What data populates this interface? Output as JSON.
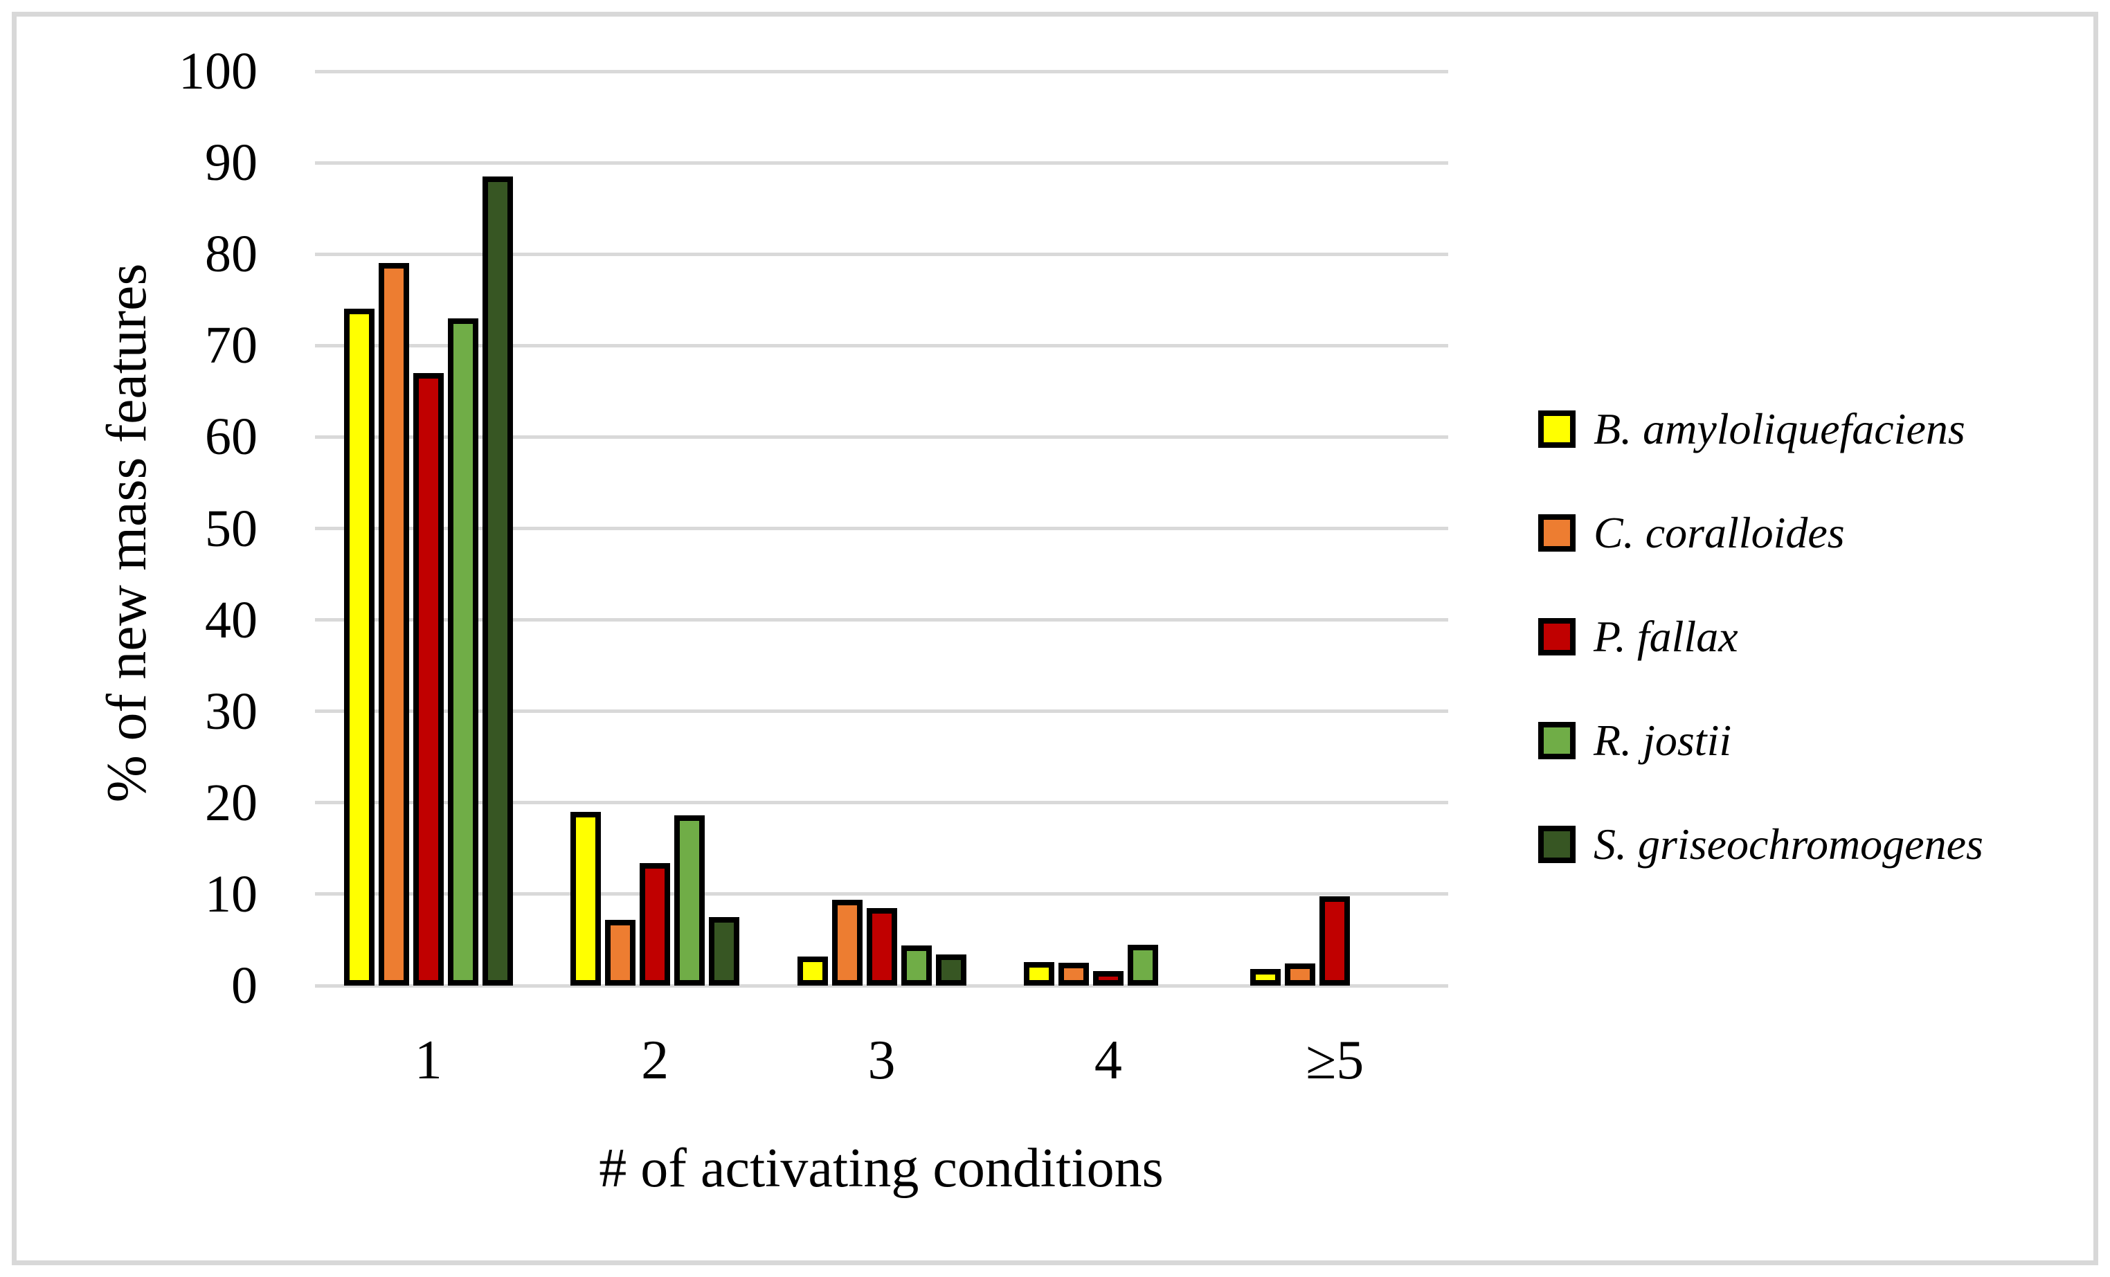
{
  "chart_data": {
    "type": "bar",
    "title": "",
    "xlabel": "# of activating conditions",
    "ylabel": "% of new mass features",
    "categories": [
      "1",
      "2",
      "3",
      "4",
      "≥5"
    ],
    "series": [
      {
        "name": "B. amyloliquefaciens",
        "color": "#FFFF00",
        "values": [
          74,
          19,
          3.2,
          2.6,
          1.8
        ]
      },
      {
        "name": "C. coralloides",
        "color": "#ED7D31",
        "values": [
          79,
          7.2,
          9.4,
          2.5,
          2.4
        ]
      },
      {
        "name": "P. fallax",
        "color": "#C00000",
        "values": [
          67,
          13.4,
          8.5,
          1.6,
          9.8
        ]
      },
      {
        "name": "R. jostii",
        "color": "#70AD47",
        "values": [
          73,
          18.6,
          4.4,
          4.5,
          0
        ]
      },
      {
        "name": "S. griseochromogenes",
        "color": "#375623",
        "values": [
          88.5,
          7.5,
          3.4,
          0,
          0
        ]
      }
    ],
    "ylim": [
      0,
      100
    ],
    "yticks": [
      0,
      10,
      20,
      30,
      40,
      50,
      60,
      70,
      80,
      90,
      100
    ],
    "grid": true,
    "legend_position": "right",
    "bar_outline_color": "#000000"
  },
  "colors": {
    "gridline": "#D9D9D9",
    "frame_border": "#D8D8D8",
    "background": "#FFFFFF"
  }
}
